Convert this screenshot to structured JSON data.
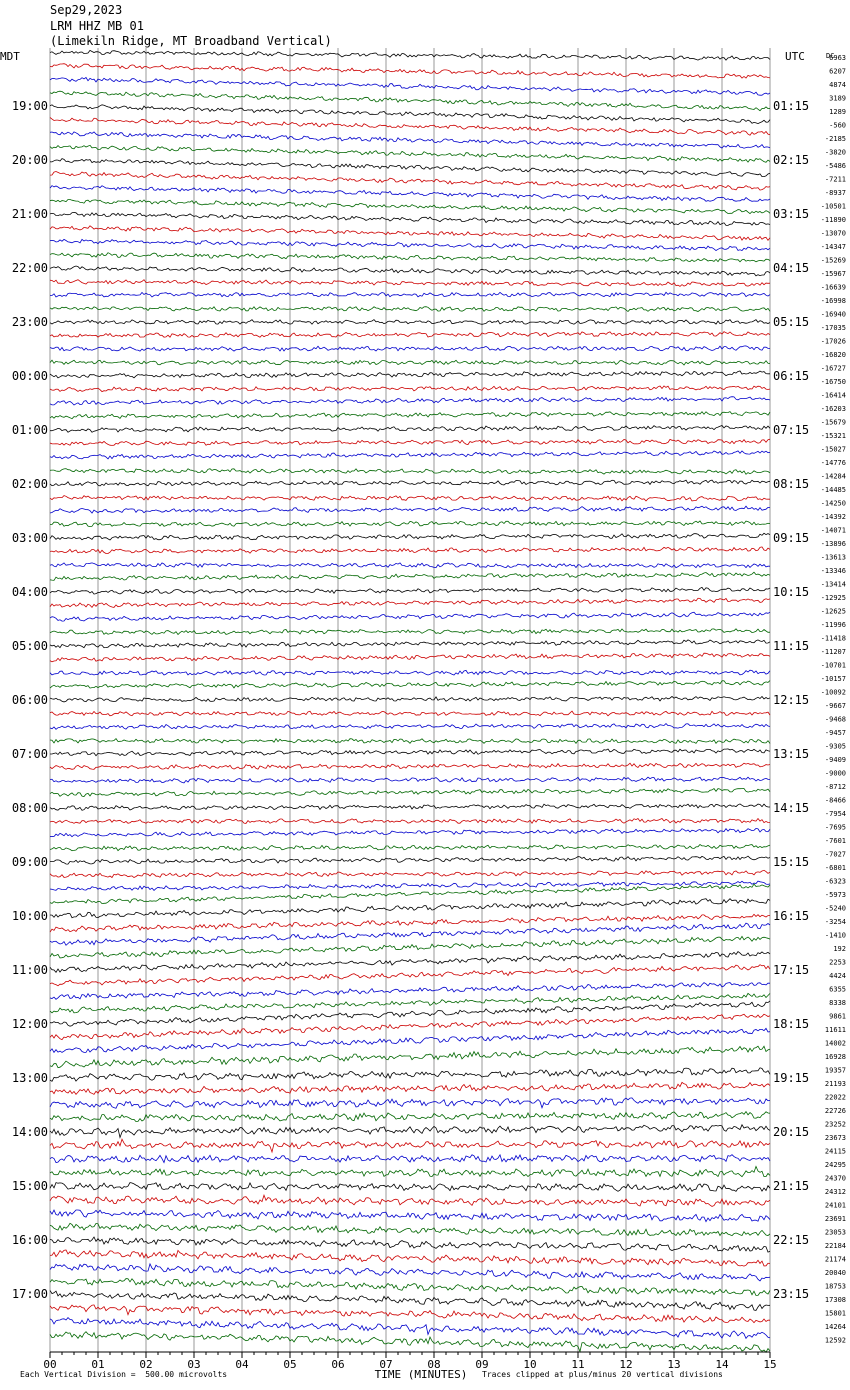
{
  "header": {
    "date": "Sep29,2023",
    "station": "LRM HHZ MB 01",
    "location": "(Limekiln Ridge, MT Broadband Vertical)"
  },
  "footer": {
    "scale_note": "Each Vertical Division =  500.00 microvolts",
    "clip_note": "Traces clipped at plus/minus 20 vertical divisions"
  },
  "colors": {
    "cycle": [
      "#000000",
      "#cc0000",
      "#0000cc",
      "#006600"
    ],
    "grid": "#808080"
  },
  "chart_data": {
    "type": "line",
    "kind": "helicorder",
    "xlabel": "TIME (MINUTES)",
    "xlim": [
      0,
      15
    ],
    "x_ticks": [
      "00",
      "01",
      "02",
      "03",
      "04",
      "05",
      "06",
      "07",
      "08",
      "09",
      "10",
      "11",
      "12",
      "13",
      "14",
      "15"
    ],
    "left_axis_title": "MDT",
    "right_axis_title": "UTC",
    "left_hour_labels": [
      "19:00",
      "20:00",
      "21:00",
      "22:00",
      "23:00",
      "00:00",
      "01:00",
      "02:00",
      "03:00",
      "04:00",
      "05:00",
      "06:00",
      "07:00",
      "08:00",
      "09:00",
      "10:00",
      "11:00",
      "12:00",
      "13:00",
      "14:00",
      "15:00",
      "16:00",
      "17:00"
    ],
    "right_hour_labels": [
      "01:15",
      "02:15",
      "03:15",
      "04:15",
      "05:15",
      "06:15",
      "07:15",
      "08:15",
      "09:15",
      "10:15",
      "11:15",
      "12:15",
      "13:15",
      "14:15",
      "15:15",
      "16:15",
      "17:15",
      "18:15",
      "19:15",
      "20:15",
      "21:15",
      "22:15",
      "23:15"
    ],
    "dc_label": "DC",
    "trace_offsets": [
      6963,
      6207,
      4874,
      3189,
      1289,
      -560,
      -2185,
      -3820,
      -5486,
      -7211,
      -8937,
      -10501,
      -11890,
      -13070,
      -14347,
      -15269,
      -15967,
      -16639,
      -16998,
      -16940,
      -17035,
      -17026,
      -16820,
      -16727,
      -16750,
      -16414,
      -16203,
      -15679,
      -15321,
      -15027,
      -14776,
      -14284,
      -14485,
      -14250,
      -14392,
      -14071,
      -13896,
      -13613,
      -13346,
      -13414,
      -12925,
      -12625,
      -11996,
      -11418,
      -11207,
      -10701,
      -10157,
      -10092,
      -9667,
      -9468,
      -9457,
      -9305,
      -9409,
      -9000,
      -8712,
      -8466,
      -7954,
      -7695,
      -7601,
      -7027,
      -6801,
      -6323,
      -5973,
      -5240,
      -3254,
      -1410,
      192,
      2253,
      4424,
      6355,
      8338,
      9861,
      11611,
      14002,
      16928,
      19357,
      21193,
      22022,
      22726,
      23252,
      23673,
      24115,
      24295,
      24370,
      24312,
      24101,
      23691,
      23053,
      22184,
      21174,
      20040,
      18753,
      17308,
      15801,
      14264,
      12592
    ]
  }
}
